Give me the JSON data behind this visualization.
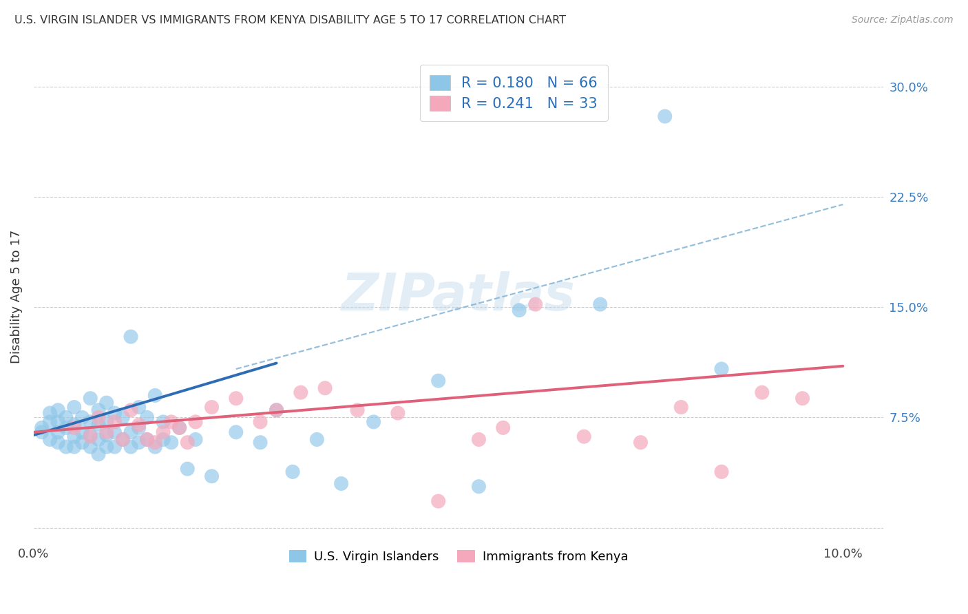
{
  "title": "U.S. VIRGIN ISLANDER VS IMMIGRANTS FROM KENYA DISABILITY AGE 5 TO 17 CORRELATION CHART",
  "source": "Source: ZipAtlas.com",
  "ylabel": "Disability Age 5 to 17",
  "xlim": [
    0.0,
    0.105
  ],
  "ylim": [
    -0.01,
    0.325
  ],
  "ytick_positions": [
    0.0,
    0.075,
    0.15,
    0.225,
    0.3
  ],
  "ytick_labels": [
    "",
    "7.5%",
    "15.0%",
    "22.5%",
    "30.0%"
  ],
  "xtick_positions": [
    0.0,
    0.02,
    0.04,
    0.06,
    0.08,
    0.1
  ],
  "xtick_labels": [
    "0.0%",
    "",
    "",
    "",
    "",
    "10.0%"
  ],
  "color_blue": "#8ec6e8",
  "color_pink": "#f5a8bc",
  "color_blue_line": "#2e6db4",
  "color_pink_line": "#e0607a",
  "color_dashed": "#8ab8d8",
  "legend_text_blue": "R = 0.180   N = 66",
  "legend_text_pink": "R = 0.241   N = 33",
  "legend_label_blue": "U.S. Virgin Islanders",
  "legend_label_pink": "Immigrants from Kenya",
  "watermark": "ZIPatlas",
  "blue_points_x": [
    0.001,
    0.001,
    0.002,
    0.002,
    0.002,
    0.003,
    0.003,
    0.003,
    0.003,
    0.004,
    0.004,
    0.004,
    0.005,
    0.005,
    0.005,
    0.005,
    0.006,
    0.006,
    0.006,
    0.007,
    0.007,
    0.007,
    0.007,
    0.008,
    0.008,
    0.008,
    0.008,
    0.009,
    0.009,
    0.009,
    0.009,
    0.01,
    0.01,
    0.01,
    0.011,
    0.011,
    0.012,
    0.012,
    0.012,
    0.013,
    0.013,
    0.013,
    0.014,
    0.014,
    0.015,
    0.015,
    0.016,
    0.016,
    0.017,
    0.018,
    0.019,
    0.02,
    0.022,
    0.025,
    0.028,
    0.03,
    0.032,
    0.035,
    0.038,
    0.042,
    0.05,
    0.055,
    0.06,
    0.07,
    0.078,
    0.085
  ],
  "blue_points_y": [
    0.065,
    0.068,
    0.06,
    0.072,
    0.078,
    0.058,
    0.065,
    0.072,
    0.08,
    0.055,
    0.068,
    0.075,
    0.055,
    0.062,
    0.07,
    0.082,
    0.058,
    0.065,
    0.075,
    0.055,
    0.063,
    0.072,
    0.088,
    0.05,
    0.06,
    0.07,
    0.08,
    0.055,
    0.063,
    0.072,
    0.085,
    0.055,
    0.065,
    0.078,
    0.06,
    0.075,
    0.055,
    0.065,
    0.13,
    0.058,
    0.068,
    0.082,
    0.06,
    0.075,
    0.055,
    0.09,
    0.06,
    0.072,
    0.058,
    0.068,
    0.04,
    0.06,
    0.035,
    0.065,
    0.058,
    0.08,
    0.038,
    0.06,
    0.03,
    0.072,
    0.1,
    0.028,
    0.148,
    0.152,
    0.28,
    0.108
  ],
  "pink_points_x": [
    0.005,
    0.007,
    0.008,
    0.009,
    0.01,
    0.011,
    0.012,
    0.013,
    0.014,
    0.015,
    0.016,
    0.017,
    0.018,
    0.019,
    0.02,
    0.022,
    0.025,
    0.028,
    0.03,
    0.033,
    0.036,
    0.04,
    0.045,
    0.05,
    0.055,
    0.058,
    0.062,
    0.068,
    0.075,
    0.08,
    0.085,
    0.09,
    0.095
  ],
  "pink_points_y": [
    0.068,
    0.062,
    0.075,
    0.065,
    0.072,
    0.06,
    0.08,
    0.07,
    0.06,
    0.058,
    0.065,
    0.072,
    0.068,
    0.058,
    0.072,
    0.082,
    0.088,
    0.072,
    0.08,
    0.092,
    0.095,
    0.08,
    0.078,
    0.018,
    0.06,
    0.068,
    0.152,
    0.062,
    0.058,
    0.082,
    0.038,
    0.092,
    0.088
  ],
  "blue_line_x": [
    0.0,
    0.03
  ],
  "blue_line_y": [
    0.063,
    0.112
  ],
  "pink_line_x": [
    0.0,
    0.1
  ],
  "pink_line_y": [
    0.065,
    0.11
  ],
  "dashed_line_x": [
    0.025,
    0.1
  ],
  "dashed_line_y": [
    0.108,
    0.22
  ],
  "figsize": [
    14.06,
    8.92
  ],
  "dpi": 100
}
